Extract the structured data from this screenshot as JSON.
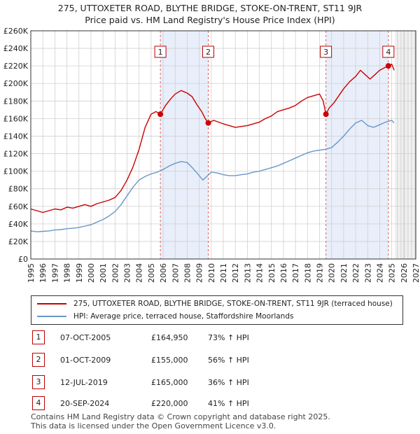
{
  "title_line1": "275, UTTOXETER ROAD, BLYTHE BRIDGE, STOKE-ON-TRENT, ST11 9JR",
  "title_line2": "Price paid vs. HM Land Registry's House Price Index (HPI)",
  "colors": {
    "property": "#cc0000",
    "hpi": "#6a96c8",
    "shade": "#e8eefa",
    "grid": "#d0d0d0",
    "vline": "#e06060"
  },
  "legend": {
    "property_label": "275, UTTOXETER ROAD, BLYTHE BRIDGE, STOKE-ON-TRENT, ST11 9JR (terraced house)",
    "hpi_label": "HPI: Average price, terraced house, Staffordshire Moorlands"
  },
  "transactions": [
    {
      "num": "1",
      "date": "07-OCT-2005",
      "price": "£164,950",
      "hpi": "73% ↑ HPI"
    },
    {
      "num": "2",
      "date": "01-OCT-2009",
      "price": "£155,000",
      "hpi": "56% ↑ HPI"
    },
    {
      "num": "3",
      "date": "12-JUL-2019",
      "price": "£165,000",
      "hpi": "36% ↑ HPI"
    },
    {
      "num": "4",
      "date": "20-SEP-2024",
      "price": "£220,000",
      "hpi": "41% ↑ HPI"
    }
  ],
  "footer_line1": "Contains HM Land Registry data © Crown copyright and database right 2025.",
  "footer_line2": "This data is licensed under the Open Government Licence v3.0.",
  "chart_data": {
    "type": "line",
    "title": "275, UTTOXETER ROAD, BLYTHE BRIDGE, STOKE-ON-TRENT, ST11 9JR",
    "subtitle": "Price paid vs. HM Land Registry's House Price Index (HPI)",
    "xlim": [
      1995,
      2027
    ],
    "ylim": [
      0,
      260000
    ],
    "x_ticks": [
      1995,
      1996,
      1997,
      1998,
      1999,
      2000,
      2001,
      2002,
      2003,
      2004,
      2005,
      2006,
      2007,
      2008,
      2009,
      2010,
      2011,
      2012,
      2013,
      2014,
      2015,
      2016,
      2017,
      2018,
      2019,
      2020,
      2021,
      2022,
      2023,
      2024,
      2025,
      2026,
      2027
    ],
    "y_ticks": [
      0,
      20000,
      40000,
      60000,
      80000,
      100000,
      120000,
      140000,
      160000,
      180000,
      200000,
      220000,
      240000,
      260000
    ],
    "y_tick_labels": [
      "£0",
      "£20K",
      "£40K",
      "£60K",
      "£80K",
      "£100K",
      "£120K",
      "£140K",
      "£160K",
      "£180K",
      "£200K",
      "£220K",
      "£240K",
      "£260K"
    ],
    "shaded_ranges": [
      [
        2005.77,
        2009.75
      ],
      [
        2019.53,
        2024.72
      ]
    ],
    "forecast_start": 2025.25,
    "series": [
      {
        "name": "275, UTTOXETER ROAD, BLYTHE BRIDGE, STOKE-ON-TRENT, ST11 9JR (terraced house)",
        "color": "#cc0000",
        "x": [
          1995.0,
          1995.5,
          1996.0,
          1996.5,
          1997.0,
          1997.5,
          1998.0,
          1998.5,
          1999.0,
          1999.5,
          2000.0,
          2000.5,
          2001.0,
          2001.5,
          2002.0,
          2002.5,
          2003.0,
          2003.5,
          2004.0,
          2004.5,
          2005.0,
          2005.4,
          2005.77,
          2006.2,
          2006.6,
          2007.0,
          2007.5,
          2008.0,
          2008.4,
          2008.8,
          2009.2,
          2009.5,
          2009.75,
          2010.2,
          2010.6,
          2011.0,
          2011.5,
          2012.0,
          2012.5,
          2013.0,
          2013.5,
          2014.0,
          2014.5,
          2015.0,
          2015.5,
          2016.0,
          2016.5,
          2017.0,
          2017.5,
          2018.0,
          2018.5,
          2019.0,
          2019.3,
          2019.53,
          2019.8,
          2020.2,
          2020.6,
          2021.0,
          2021.5,
          2022.0,
          2022.4,
          2022.8,
          2023.2,
          2023.6,
          2024.0,
          2024.4,
          2024.72,
          2025.0,
          2025.2
        ],
        "y": [
          57000,
          55000,
          53000,
          55000,
          57000,
          56000,
          59000,
          58000,
          60000,
          62000,
          60000,
          63000,
          65000,
          67000,
          70000,
          78000,
          90000,
          105000,
          125000,
          150000,
          165000,
          168000,
          164950,
          175000,
          182000,
          188000,
          192000,
          189000,
          185000,
          176000,
          168000,
          160000,
          155000,
          158000,
          156000,
          154000,
          152000,
          150000,
          151000,
          152000,
          154000,
          156000,
          160000,
          163000,
          168000,
          170000,
          172000,
          175000,
          180000,
          184000,
          186000,
          188000,
          180000,
          165000,
          172000,
          178000,
          186000,
          194000,
          202000,
          208000,
          215000,
          210000,
          205000,
          210000,
          215000,
          218000,
          220000,
          222000,
          215000
        ]
      },
      {
        "name": "HPI: Average price, terraced house, Staffordshire Moorlands",
        "color": "#6a96c8",
        "x": [
          1995.0,
          1995.5,
          1996.0,
          1996.5,
          1997.0,
          1997.5,
          1998.0,
          1998.5,
          1999.0,
          1999.5,
          2000.0,
          2000.5,
          2001.0,
          2001.5,
          2002.0,
          2002.5,
          2003.0,
          2003.5,
          2004.0,
          2004.5,
          2005.0,
          2005.5,
          2006.0,
          2006.5,
          2007.0,
          2007.5,
          2008.0,
          2008.5,
          2009.0,
          2009.3,
          2009.7,
          2010.0,
          2010.5,
          2011.0,
          2011.5,
          2012.0,
          2012.5,
          2013.0,
          2013.5,
          2014.0,
          2014.5,
          2015.0,
          2015.5,
          2016.0,
          2016.5,
          2017.0,
          2017.5,
          2018.0,
          2018.5,
          2019.0,
          2019.5,
          2020.0,
          2020.5,
          2021.0,
          2021.5,
          2022.0,
          2022.5,
          2023.0,
          2023.5,
          2024.0,
          2024.5,
          2025.0,
          2025.2
        ],
        "y": [
          32000,
          31000,
          31500,
          32000,
          33000,
          33500,
          34500,
          35000,
          36000,
          37500,
          39000,
          42000,
          45000,
          49000,
          54000,
          62000,
          72000,
          82000,
          90000,
          94000,
          97000,
          99000,
          102000,
          106000,
          109000,
          111000,
          110000,
          103000,
          95000,
          90000,
          95000,
          99000,
          98000,
          96000,
          95000,
          95000,
          96000,
          97000,
          99000,
          100000,
          102000,
          104000,
          106000,
          109000,
          112000,
          115000,
          118000,
          121000,
          123000,
          124000,
          125000,
          127000,
          133000,
          140000,
          148000,
          155000,
          158000,
          152000,
          150000,
          153000,
          156000,
          158000,
          155000
        ]
      }
    ],
    "markers": [
      {
        "label": "1",
        "x": 2005.77,
        "y": 164950
      },
      {
        "label": "2",
        "x": 2009.75,
        "y": 155000
      },
      {
        "label": "3",
        "x": 2019.53,
        "y": 165000
      },
      {
        "label": "4",
        "x": 2024.72,
        "y": 220000
      }
    ]
  }
}
